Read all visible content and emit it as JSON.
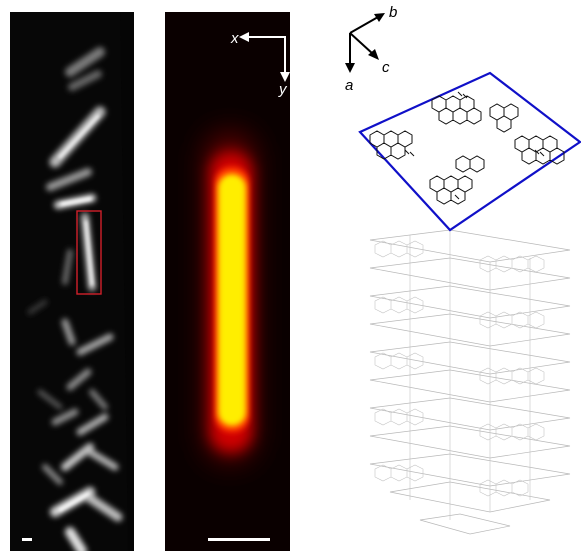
{
  "figure": {
    "left_panel": {
      "description_icon": "fluorescence-microscope-image",
      "scale_bar_present": true
    },
    "middle_panel": {
      "axis_x_label": "x",
      "axis_y_label": "y",
      "scale_bar_present": true
    },
    "right_panel": {
      "axis_b_label": "b",
      "axis_a_label": "a",
      "axis_c_label": "c",
      "unit_cell_outline_color": "#1010c8",
      "molecule_icon": "perylene-molecule-icon"
    }
  },
  "colors": {
    "hot_core": "#ffee00",
    "hot_edge": "#ff1a00",
    "roi_box": "#d0202a"
  }
}
